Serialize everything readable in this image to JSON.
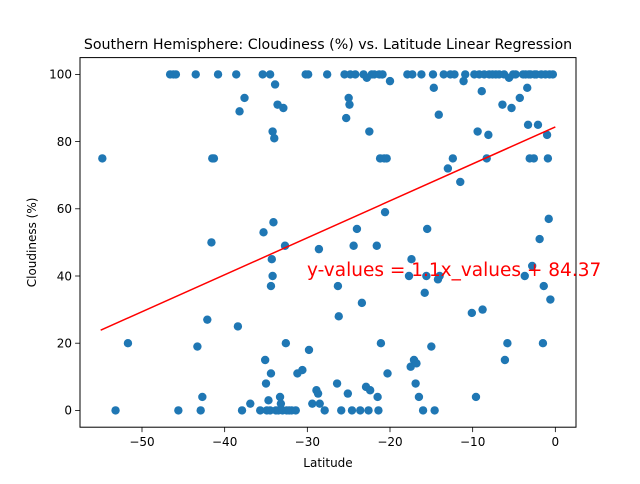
{
  "chart_data": {
    "type": "scatter",
    "title": "Southern Hemisphere: Cloudiness (%) vs. Latitude Linear Regression",
    "xlabel": "Latitude",
    "ylabel": "Cloudiness (%)",
    "xlim": [
      -57.5,
      2.5
    ],
    "ylim": [
      -5,
      105
    ],
    "xticks": [
      -50,
      -40,
      -30,
      -20,
      -10,
      0
    ],
    "yticks": [
      0,
      20,
      40,
      60,
      80,
      100
    ],
    "grid": false,
    "point_color": "#1f77b4",
    "line_color": "#ff0000",
    "annotation": "y-values = 1.1x_values + 84.37",
    "regression": {
      "slope": 1.1,
      "intercept": 84.37,
      "x_range": [
        -55,
        0
      ]
    },
    "points": [
      [
        -54.8,
        75
      ],
      [
        -53.2,
        0
      ],
      [
        -51.7,
        20
      ],
      [
        -46.6,
        100
      ],
      [
        -46.2,
        100
      ],
      [
        -45.9,
        100
      ],
      [
        -45.6,
        0
      ],
      [
        -43.5,
        100
      ],
      [
        -43.3,
        19
      ],
      [
        -42.9,
        0
      ],
      [
        -42.7,
        4
      ],
      [
        -42.1,
        27
      ],
      [
        -41.6,
        50
      ],
      [
        -41.5,
        75
      ],
      [
        -41.3,
        75
      ],
      [
        -40.8,
        100
      ],
      [
        -38.6,
        100
      ],
      [
        -38.4,
        25
      ],
      [
        -38.2,
        89
      ],
      [
        -37.9,
        0
      ],
      [
        -37.6,
        93
      ],
      [
        -36.9,
        2
      ],
      [
        -35.7,
        0
      ],
      [
        -35.4,
        100
      ],
      [
        -35.3,
        53
      ],
      [
        -35.1,
        15
      ],
      [
        -35.0,
        8
      ],
      [
        -34.9,
        0
      ],
      [
        -34.7,
        3
      ],
      [
        -34.5,
        100
      ],
      [
        -34.5,
        0
      ],
      [
        -34.4,
        11
      ],
      [
        -34.4,
        37
      ],
      [
        -34.3,
        45
      ],
      [
        -34.2,
        40
      ],
      [
        -34.2,
        83
      ],
      [
        -34.1,
        56
      ],
      [
        -34.0,
        81
      ],
      [
        -33.9,
        97
      ],
      [
        -33.8,
        0
      ],
      [
        -33.6,
        91
      ],
      [
        -33.5,
        0
      ],
      [
        -33.3,
        4
      ],
      [
        -33.2,
        2
      ],
      [
        -33.0,
        0
      ],
      [
        -32.9,
        90
      ],
      [
        -32.7,
        49
      ],
      [
        -32.6,
        20
      ],
      [
        -32.5,
        0
      ],
      [
        -32.2,
        0
      ],
      [
        -31.9,
        0
      ],
      [
        -31.4,
        0
      ],
      [
        -31.2,
        11
      ],
      [
        -30.6,
        12
      ],
      [
        -30.2,
        100
      ],
      [
        -29.9,
        100
      ],
      [
        -29.8,
        18
      ],
      [
        -29.4,
        2
      ],
      [
        -28.9,
        6
      ],
      [
        -28.7,
        5
      ],
      [
        -28.6,
        48
      ],
      [
        -28.5,
        2
      ],
      [
        -27.9,
        0
      ],
      [
        -27.6,
        100
      ],
      [
        -26.4,
        8
      ],
      [
        -26.3,
        37
      ],
      [
        -26.2,
        28
      ],
      [
        -25.9,
        0
      ],
      [
        -25.5,
        100
      ],
      [
        -25.3,
        87
      ],
      [
        -25.1,
        5
      ],
      [
        -25.0,
        93
      ],
      [
        -24.9,
        91
      ],
      [
        -24.8,
        100
      ],
      [
        -24.6,
        0
      ],
      [
        -24.4,
        49
      ],
      [
        -24.2,
        100
      ],
      [
        -24.0,
        54
      ],
      [
        -23.6,
        0
      ],
      [
        -23.4,
        32
      ],
      [
        -23.2,
        100
      ],
      [
        -22.9,
        7
      ],
      [
        -22.8,
        99
      ],
      [
        -22.6,
        0
      ],
      [
        -22.5,
        83
      ],
      [
        -22.4,
        6
      ],
      [
        -22.2,
        100
      ],
      [
        -21.9,
        100
      ],
      [
        -21.6,
        49
      ],
      [
        -21.5,
        4
      ],
      [
        -21.4,
        0
      ],
      [
        -21.3,
        100
      ],
      [
        -21.2,
        75
      ],
      [
        -21.1,
        20
      ],
      [
        -20.9,
        100
      ],
      [
        -20.7,
        75
      ],
      [
        -20.6,
        59
      ],
      [
        -20.4,
        75
      ],
      [
        -20.3,
        11
      ],
      [
        -20.0,
        98
      ],
      [
        -17.9,
        100
      ],
      [
        -17.7,
        40
      ],
      [
        -17.5,
        13
      ],
      [
        -17.4,
        45
      ],
      [
        -17.3,
        100
      ],
      [
        -17.1,
        15
      ],
      [
        -16.9,
        8
      ],
      [
        -16.8,
        14
      ],
      [
        -16.5,
        4
      ],
      [
        -16.2,
        100
      ],
      [
        -16.0,
        0
      ],
      [
        -15.8,
        35
      ],
      [
        -15.6,
        40
      ],
      [
        -15.5,
        54
      ],
      [
        -15.0,
        19
      ],
      [
        -14.8,
        100
      ],
      [
        -14.7,
        96
      ],
      [
        -14.6,
        0
      ],
      [
        -14.2,
        39
      ],
      [
        -14.1,
        88
      ],
      [
        -14.0,
        40
      ],
      [
        -13.5,
        100
      ],
      [
        -13.0,
        72
      ],
      [
        -12.7,
        100
      ],
      [
        -12.4,
        75
      ],
      [
        -12.2,
        100
      ],
      [
        -11.5,
        68
      ],
      [
        -11.1,
        98
      ],
      [
        -10.9,
        100
      ],
      [
        -10.1,
        29
      ],
      [
        -9.8,
        100
      ],
      [
        -9.6,
        4
      ],
      [
        -9.4,
        83
      ],
      [
        -9.2,
        100
      ],
      [
        -8.9,
        95
      ],
      [
        -8.8,
        30
      ],
      [
        -8.6,
        100
      ],
      [
        -8.3,
        75
      ],
      [
        -8.1,
        82
      ],
      [
        -8.0,
        100
      ],
      [
        -7.6,
        100
      ],
      [
        -7.2,
        100
      ],
      [
        -6.8,
        100
      ],
      [
        -6.4,
        91
      ],
      [
        -6.2,
        100
      ],
      [
        -6.1,
        15
      ],
      [
        -5.8,
        20
      ],
      [
        -5.6,
        99
      ],
      [
        -5.3,
        90
      ],
      [
        -5.1,
        100
      ],
      [
        -4.8,
        100
      ],
      [
        -4.3,
        93
      ],
      [
        -3.9,
        100
      ],
      [
        -3.7,
        40
      ],
      [
        -3.6,
        100
      ],
      [
        -3.4,
        96
      ],
      [
        -3.3,
        85
      ],
      [
        -3.2,
        100
      ],
      [
        -3.1,
        75
      ],
      [
        -3.0,
        100
      ],
      [
        -2.8,
        43
      ],
      [
        -2.6,
        75
      ],
      [
        -2.5,
        100
      ],
      [
        -2.3,
        100
      ],
      [
        -2.1,
        85
      ],
      [
        -1.9,
        51
      ],
      [
        -1.7,
        100
      ],
      [
        -1.5,
        20
      ],
      [
        -1.4,
        37
      ],
      [
        -1.2,
        100
      ],
      [
        -1.0,
        82
      ],
      [
        -0.9,
        75
      ],
      [
        -0.8,
        57
      ],
      [
        -0.7,
        100
      ],
      [
        -0.6,
        33
      ],
      [
        -0.3,
        100
      ]
    ]
  }
}
